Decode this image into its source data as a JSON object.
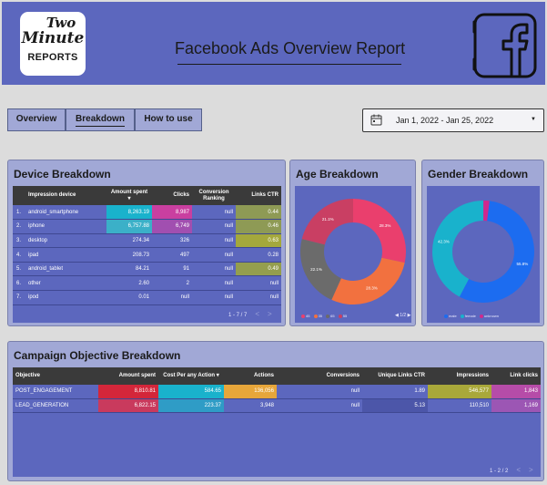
{
  "header": {
    "logo": {
      "line1": "Two",
      "line2": "Minute",
      "line3": "REPORTS"
    },
    "title": "Facebook Ads Overview Report",
    "icon": "facebook-icon"
  },
  "nav": {
    "tabs": [
      {
        "label": "Overview"
      },
      {
        "label": "Breakdown",
        "active": true
      },
      {
        "label": "How to use"
      }
    ]
  },
  "date_range": {
    "label": "Jan 1, 2022 - Jan 25, 2022",
    "icon": "calendar-icon"
  },
  "device_breakdown": {
    "title": "Device Breakdown",
    "columns": [
      "Impression device",
      "Amount spent ▾",
      "Clicks",
      "Conversion Ranking",
      "Links CTR"
    ],
    "rows": [
      {
        "n": "1.",
        "device": "android_smartphone",
        "spent": "8,263.19",
        "clicks": "8,987",
        "conv": "null",
        "ctr": "0.44"
      },
      {
        "n": "2.",
        "device": "iphone",
        "spent": "6,757.88",
        "clicks": "6,749",
        "conv": "null",
        "ctr": "0.46"
      },
      {
        "n": "3.",
        "device": "desktop",
        "spent": "274.34",
        "clicks": "326",
        "conv": "null",
        "ctr": "0.63"
      },
      {
        "n": "4.",
        "device": "ipad",
        "spent": "208.73",
        "clicks": "497",
        "conv": "null",
        "ctr": "0.28"
      },
      {
        "n": "5.",
        "device": "android_tablet",
        "spent": "84.21",
        "clicks": "91",
        "conv": "null",
        "ctr": "0.49"
      },
      {
        "n": "6.",
        "device": "other",
        "spent": "2.60",
        "clicks": "2",
        "conv": "null",
        "ctr": "null"
      },
      {
        "n": "7.",
        "device": "ipod",
        "spent": "0.01",
        "clicks": "null",
        "conv": "null",
        "ctr": "null"
      }
    ],
    "pagination": "1 - 7 / 7"
  },
  "age_breakdown": {
    "title": "Age Breakdown",
    "legend": [
      "45",
      "35",
      "65",
      "55"
    ],
    "legend_nav": "◀ 1/2 ▶",
    "colors": {
      "35": "#f2713f",
      "45": "#ea3f6d",
      "55": "#c93f63",
      "65": "#6b6b6b"
    }
  },
  "gender_breakdown": {
    "title": "Gender Breakdown",
    "legend": [
      "male",
      "female",
      "unknown"
    ],
    "colors": {
      "male": "#1c6cf0",
      "female": "#19b2cc",
      "unknown": "#d0288d"
    }
  },
  "campaign_breakdown": {
    "title": "Campaign Objective Breakdown",
    "columns": [
      "Objective",
      "Amount spent",
      "Cost Per any Action ▾",
      "Actions",
      "Conversions",
      "Unique Links CTR",
      "Impressions",
      "Link clicks"
    ],
    "rows": [
      {
        "objective": "POST_ENGAGEMENT",
        "spent": "8,810.81",
        "cpa": "584.65",
        "actions": "136,056",
        "conv": "null",
        "ctr": "1.89",
        "impr": "546,577",
        "clicks": "1,843"
      },
      {
        "objective": "LEAD_GENERATION",
        "spent": "6,822.15",
        "cpa": "223.37",
        "actions": "3,948",
        "conv": "null",
        "ctr": "5.13",
        "impr": "110,510",
        "clicks": "1,169"
      }
    ],
    "pagination": "1 - 2 / 2"
  },
  "chart_data": [
    {
      "type": "pie",
      "title": "Age Breakdown",
      "categories": [
        "45",
        "35",
        "65",
        "55"
      ],
      "values": [
        28.3,
        28.3,
        22.1,
        21.1
      ],
      "labels": [
        "28.3%",
        "28.3%",
        "22.1%",
        "21.1%"
      ],
      "legend": "bottom"
    },
    {
      "type": "pie",
      "title": "Gender Breakdown",
      "categories": [
        "male",
        "female",
        "unknown"
      ],
      "values": [
        55.8,
        42.3,
        1.9
      ],
      "labels": [
        "55.8%",
        "42.3%",
        ""
      ],
      "legend": "bottom"
    }
  ]
}
